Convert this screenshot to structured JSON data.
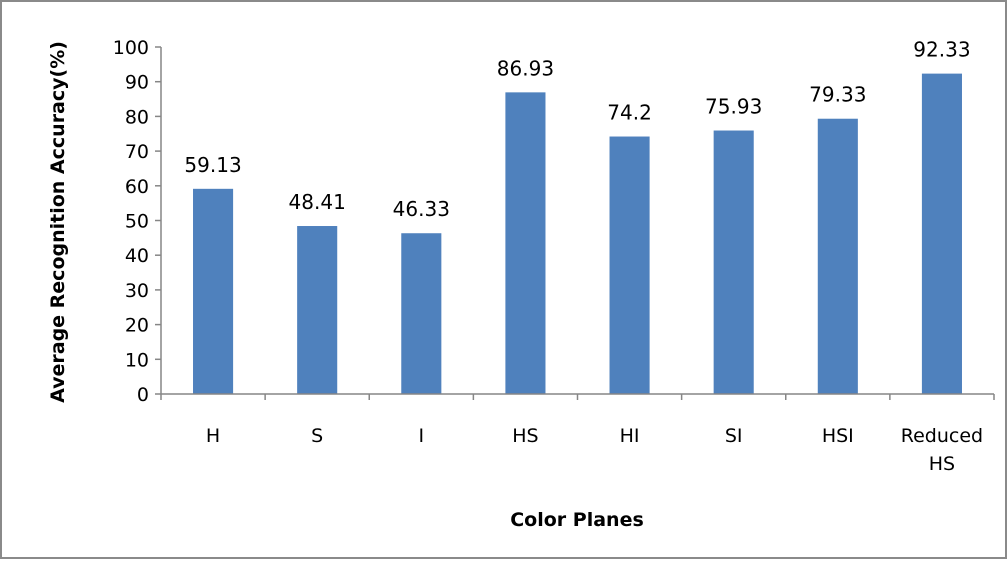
{
  "chart_data": {
    "type": "bar",
    "title": "",
    "xlabel": "Color Planes",
    "ylabel": "Average Recognition Accuracy(%)",
    "categories": [
      "H",
      "S",
      "I",
      "HS",
      "HI",
      "SI",
      "HSI",
      "Reduced HS"
    ],
    "category_lines": [
      [
        "H"
      ],
      [
        "S"
      ],
      [
        "I"
      ],
      [
        "HS"
      ],
      [
        "HI"
      ],
      [
        "SI"
      ],
      [
        "HSI"
      ],
      [
        "Reduced",
        "HS"
      ]
    ],
    "values": [
      59.13,
      48.41,
      46.33,
      86.93,
      74.2,
      75.93,
      79.33,
      92.33
    ],
    "data_labels": [
      "59.13",
      "48.41",
      "46.33",
      "86.93",
      "74.2",
      "75.93",
      "79.33",
      "92.33"
    ],
    "ylim": [
      0,
      100
    ],
    "yticks": [
      0,
      10,
      20,
      30,
      40,
      50,
      60,
      70,
      80,
      90,
      100
    ],
    "bar_color": "#4f81bd",
    "grid": false,
    "legend": "none"
  }
}
